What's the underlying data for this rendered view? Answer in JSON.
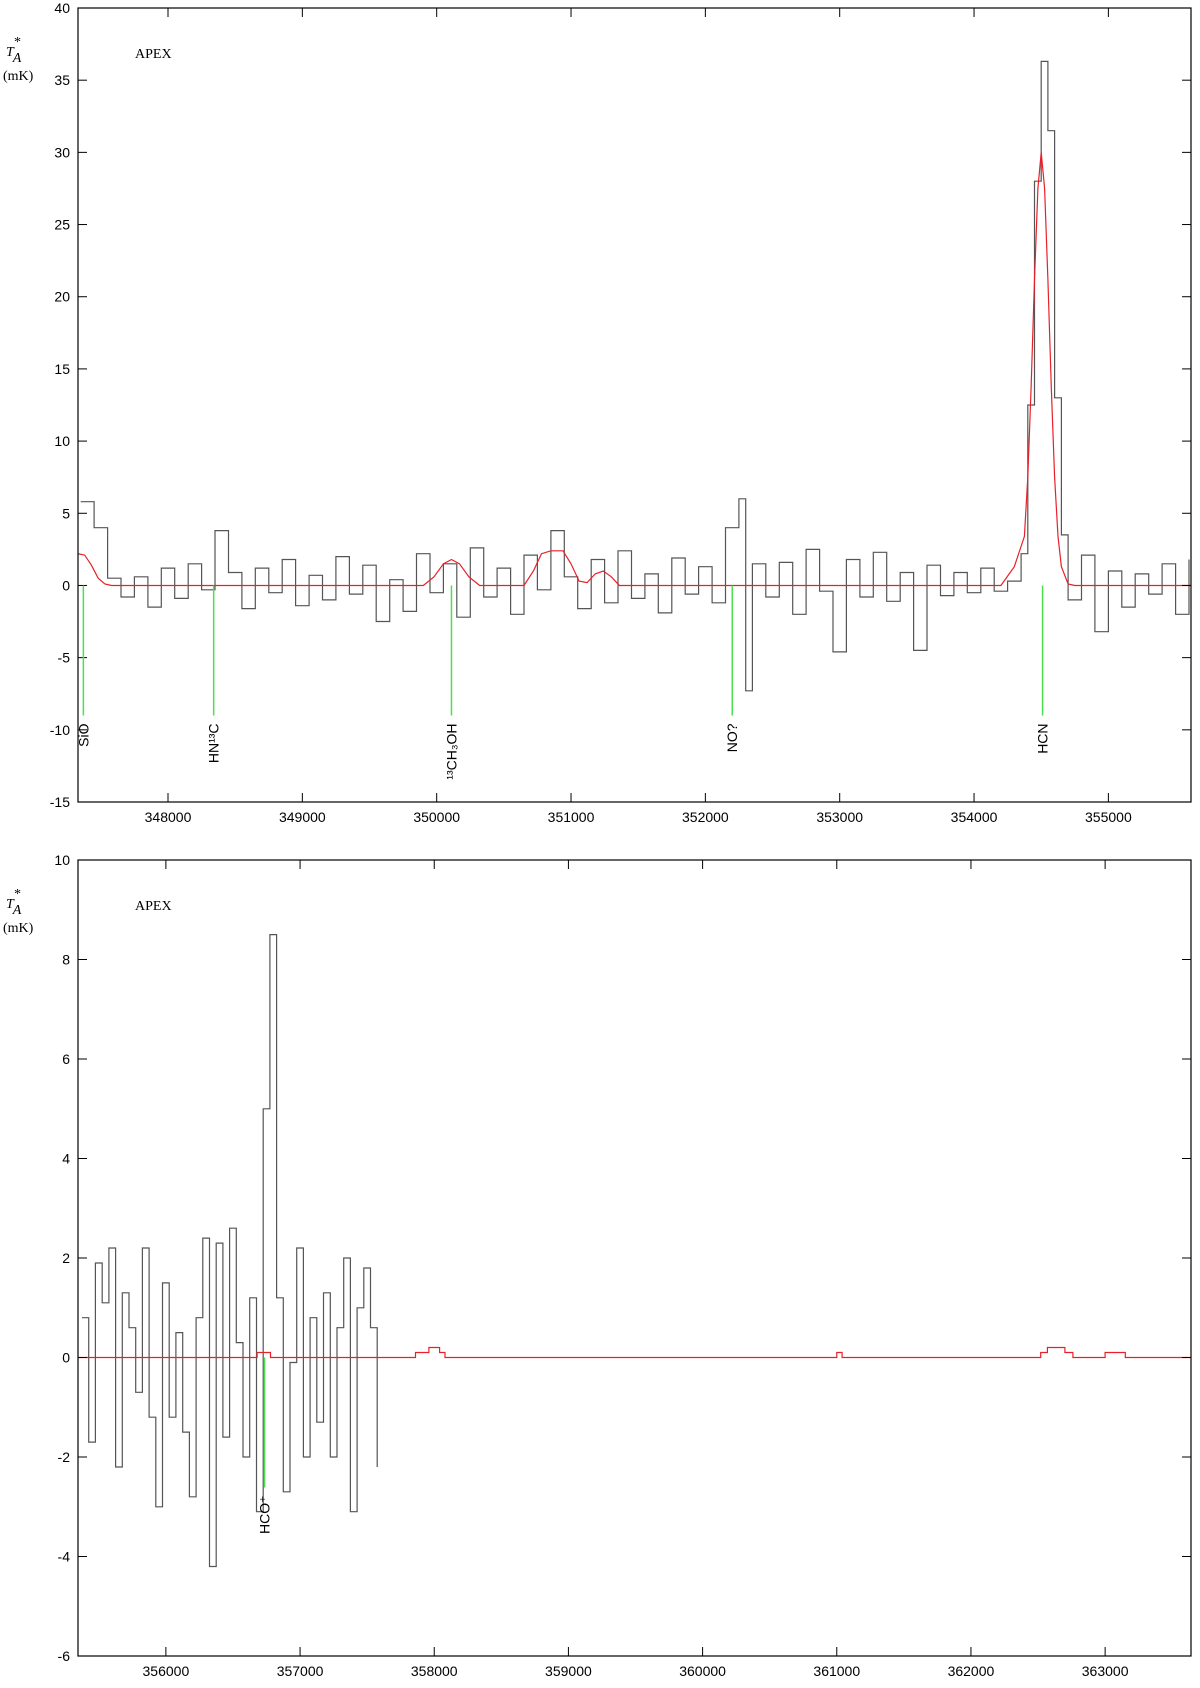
{
  "chart_data": [
    {
      "type": "spectrum",
      "annotation": "APEX",
      "ylabel": {
        "symbol": "T",
        "sub": "A",
        "sup": "*",
        "unit": "(mK)"
      },
      "xlim": [
        347330,
        355615
      ],
      "ylim": [
        -15,
        40
      ],
      "xticks": [
        348000,
        349000,
        350000,
        351000,
        352000,
        353000,
        354000,
        355000
      ],
      "yticks": [
        -15,
        -10,
        -5,
        0,
        5,
        10,
        15,
        20,
        25,
        30,
        35,
        40
      ],
      "series": [
        {
          "color": "#555555",
          "step": true,
          "x": [
            347350,
            347450,
            347550,
            347650,
            347750,
            347850,
            347950,
            348050,
            348150,
            348250,
            348350,
            348450,
            348550,
            348650,
            348750,
            348850,
            348950,
            349050,
            349150,
            349250,
            349350,
            349450,
            349550,
            349650,
            349750,
            349850,
            349950,
            350050,
            350150,
            350250,
            350350,
            350450,
            350550,
            350650,
            350750,
            350850,
            350950,
            351050,
            351150,
            351250,
            351350,
            351450,
            351550,
            351650,
            351750,
            351850,
            351950,
            352050,
            352150,
            352250,
            352300,
            352350,
            352450,
            352550,
            352650,
            352750,
            352850,
            352950,
            353050,
            353150,
            353250,
            353350,
            353450,
            353550,
            353650,
            353750,
            353850,
            353950,
            354050,
            354150,
            354250,
            354350,
            354400,
            354450,
            354500,
            354550,
            354600,
            354650,
            354700,
            354800,
            354900,
            355000,
            355100,
            355200,
            355300,
            355400,
            355500,
            355600
          ],
          "values": [
            5.8,
            4.0,
            0.5,
            -0.8,
            0.6,
            -1.5,
            1.2,
            -0.9,
            1.5,
            -0.3,
            3.8,
            0.9,
            -1.6,
            1.2,
            -0.5,
            1.8,
            -1.4,
            0.7,
            -1.0,
            2.0,
            -0.6,
            1.4,
            -2.5,
            0.4,
            -1.8,
            2.2,
            -0.5,
            1.5,
            -2.2,
            2.6,
            -0.8,
            1.2,
            -2.0,
            2.1,
            -0.3,
            3.8,
            0.6,
            -1.6,
            1.8,
            -1.2,
            2.4,
            -0.9,
            0.8,
            -1.9,
            1.9,
            -0.6,
            1.3,
            -1.2,
            4.0,
            6.0,
            -7.3,
            1.5,
            -0.8,
            1.6,
            -2.0,
            2.5,
            -0.4,
            -4.6,
            1.8,
            -0.8,
            2.3,
            -1.1,
            0.9,
            -4.5,
            1.4,
            -0.7,
            0.9,
            -0.5,
            1.2,
            -0.4,
            0.3,
            2.2,
            12.5,
            28.0,
            36.3,
            31.5,
            13.0,
            3.5,
            -1.0,
            2.1,
            -3.2,
            1.0,
            -1.5,
            0.8,
            -0.6,
            1.5,
            -2.0,
            1.8
          ]
        },
        {
          "color": "#e8202a",
          "step": false,
          "x": [
            347330,
            347380,
            347430,
            347480,
            347530,
            347580,
            349900,
            349980,
            350050,
            350110,
            350170,
            350240,
            350320,
            350650,
            350720,
            350780,
            350850,
            350940,
            351000,
            351060,
            351120,
            351180,
            351240,
            351300,
            351360,
            354200,
            354300,
            354375,
            354400,
            354425,
            354450,
            354475,
            354500,
            354525,
            354550,
            354575,
            354600,
            354625,
            354650,
            354700,
            354750,
            355615
          ],
          "values": [
            2.2,
            2.1,
            1.4,
            0.5,
            0.1,
            0,
            0,
            0.6,
            1.5,
            1.8,
            1.5,
            0.6,
            0,
            0,
            1.0,
            2.2,
            2.4,
            2.4,
            1.5,
            0.3,
            0.2,
            0.8,
            1.0,
            0.6,
            0,
            0,
            1.3,
            3.4,
            7.5,
            13.7,
            21.2,
            27.5,
            30.0,
            27.5,
            21.2,
            13.7,
            7.5,
            3.4,
            1.3,
            0.1,
            0,
            0
          ]
        }
      ],
      "markers": {
        "color": "#4de04d",
        "x": [
          347370,
          348340,
          350110,
          352200,
          354510
        ],
        "labels": [
          "SiO",
          "HN¹³C",
          "¹³CH₃OH",
          "NO?",
          "HCN"
        ]
      }
    },
    {
      "type": "spectrum",
      "annotation": "APEX",
      "ylabel": {
        "symbol": "T",
        "sub": "A",
        "sup": "*",
        "unit": "(mK)"
      },
      "xlim": [
        355345,
        363640
      ],
      "ylim": [
        -6,
        10
      ],
      "xticks": [
        356000,
        357000,
        358000,
        359000,
        360000,
        361000,
        362000,
        363000
      ],
      "yticks": [
        -6,
        -4,
        -2,
        0,
        2,
        4,
        6,
        8,
        10
      ],
      "series": [
        {
          "color": "#555555",
          "step": true,
          "x": [
            355375,
            355425,
            355475,
            355525,
            355575,
            355625,
            355675,
            355725,
            355775,
            355825,
            355875,
            355925,
            355975,
            356025,
            356075,
            356125,
            356175,
            356225,
            356275,
            356325,
            356375,
            356425,
            356475,
            356525,
            356575,
            356625,
            356675,
            356725,
            356775,
            356825,
            356875,
            356925,
            356975,
            357025,
            357075,
            357125,
            357175,
            357225,
            357275,
            357325,
            357375,
            357425,
            357475,
            357525,
            357575
          ],
          "values": [
            0.8,
            -1.7,
            1.9,
            1.1,
            2.2,
            -2.2,
            1.3,
            0.6,
            -0.7,
            2.2,
            -1.2,
            -3.0,
            1.5,
            -1.2,
            0.5,
            -1.5,
            -2.8,
            0.8,
            2.4,
            -4.2,
            2.3,
            -1.6,
            2.6,
            0.3,
            -2.0,
            1.2,
            -3.1,
            5.0,
            8.5,
            1.2,
            -2.7,
            -0.1,
            2.2,
            -2.0,
            0.8,
            -1.3,
            1.3,
            -2.0,
            0.6,
            2.0,
            -3.1,
            1.0,
            1.8,
            0.6,
            -2.2
          ]
        },
        {
          "color": "#e8202a",
          "step": true,
          "x": [
            355345,
            356680,
            356780,
            357860,
            357960,
            358040,
            358080,
            361000,
            361040,
            362520,
            362570,
            362700,
            362760,
            363000,
            363150,
            363640
          ],
          "values": [
            0,
            0.1,
            0,
            0.1,
            0.2,
            0.1,
            0,
            0.1,
            0,
            0.1,
            0.2,
            0.1,
            0,
            0.1,
            0,
            0
          ]
        }
      ],
      "markers": {
        "color": "#4de04d",
        "x": [
          356735
        ],
        "labels": [
          "HCO⁺"
        ]
      }
    }
  ]
}
